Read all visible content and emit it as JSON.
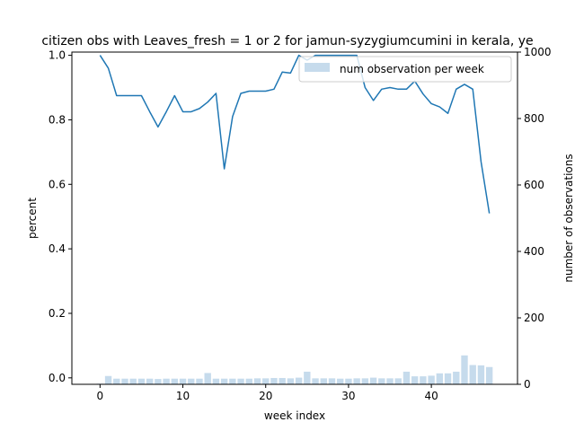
{
  "chart_data": {
    "type": "bar+line",
    "title": "citizen obs with Leaves_fresh = 1 or 2 for jamun-syzygiumcumini in kerala, ye",
    "xlabel": "week index",
    "ylabel_left": "percent",
    "ylabel_right": "number of observations",
    "xlim": [
      -3.4,
      50.4
    ],
    "ylim_left": [
      -0.02,
      1.01
    ],
    "ylim_right": [
      0,
      1000
    ],
    "x_ticks": [
      0,
      10,
      20,
      30,
      40
    ],
    "y_ticks_left": [
      0.0,
      0.2,
      0.4,
      0.6,
      0.8,
      1.0
    ],
    "y_ticks_right": [
      0,
      200,
      400,
      600,
      800,
      1000
    ],
    "grid": false,
    "legend_position": "top-right",
    "line_series": {
      "x": [
        0,
        1,
        2,
        3,
        4,
        5,
        6,
        7,
        8,
        9,
        10,
        11,
        12,
        13,
        14,
        15,
        16,
        17,
        18,
        19,
        20,
        21,
        22,
        23,
        24,
        25,
        26,
        27,
        28,
        29,
        30,
        31,
        32,
        33,
        34,
        35,
        36,
        37,
        38,
        39,
        40,
        41,
        42,
        43,
        44,
        45,
        46,
        47
      ],
      "values": [
        1.0,
        0.96,
        0.875,
        0.875,
        0.875,
        0.875,
        0.825,
        0.778,
        0.825,
        0.875,
        0.825,
        0.825,
        0.835,
        0.855,
        0.882,
        0.648,
        0.81,
        0.882,
        0.889,
        0.889,
        0.889,
        0.895,
        0.948,
        0.945,
        1.0,
        0.985,
        1.0,
        1.0,
        1.0,
        1.0,
        1.0,
        1.0,
        0.9,
        0.86,
        0.895,
        0.9,
        0.895,
        0.895,
        0.92,
        0.88,
        0.85,
        0.84,
        0.82,
        0.895,
        0.91,
        0.895,
        0.67,
        0.51
      ],
      "color": "#1f77b4"
    },
    "bar_series": {
      "name": "num observation per week",
      "x": [
        0,
        1,
        2,
        3,
        4,
        5,
        6,
        7,
        8,
        9,
        10,
        11,
        12,
        13,
        14,
        15,
        16,
        17,
        18,
        19,
        20,
        21,
        22,
        23,
        24,
        25,
        26,
        27,
        28,
        29,
        30,
        31,
        32,
        33,
        34,
        35,
        36,
        37,
        38,
        39,
        40,
        41,
        42,
        43,
        44,
        45,
        46,
        47
      ],
      "values": [
        2,
        25,
        17,
        17,
        17,
        17,
        17,
        16,
        17,
        17,
        17,
        17,
        17,
        34,
        17,
        17,
        17,
        17,
        17,
        18,
        18,
        19,
        19,
        18,
        20,
        38,
        18,
        18,
        18,
        17,
        17,
        18,
        18,
        20,
        18,
        18,
        18,
        38,
        24,
        24,
        26,
        33,
        33,
        38,
        87,
        58,
        57,
        52
      ],
      "color": "#c6dbec"
    }
  }
}
